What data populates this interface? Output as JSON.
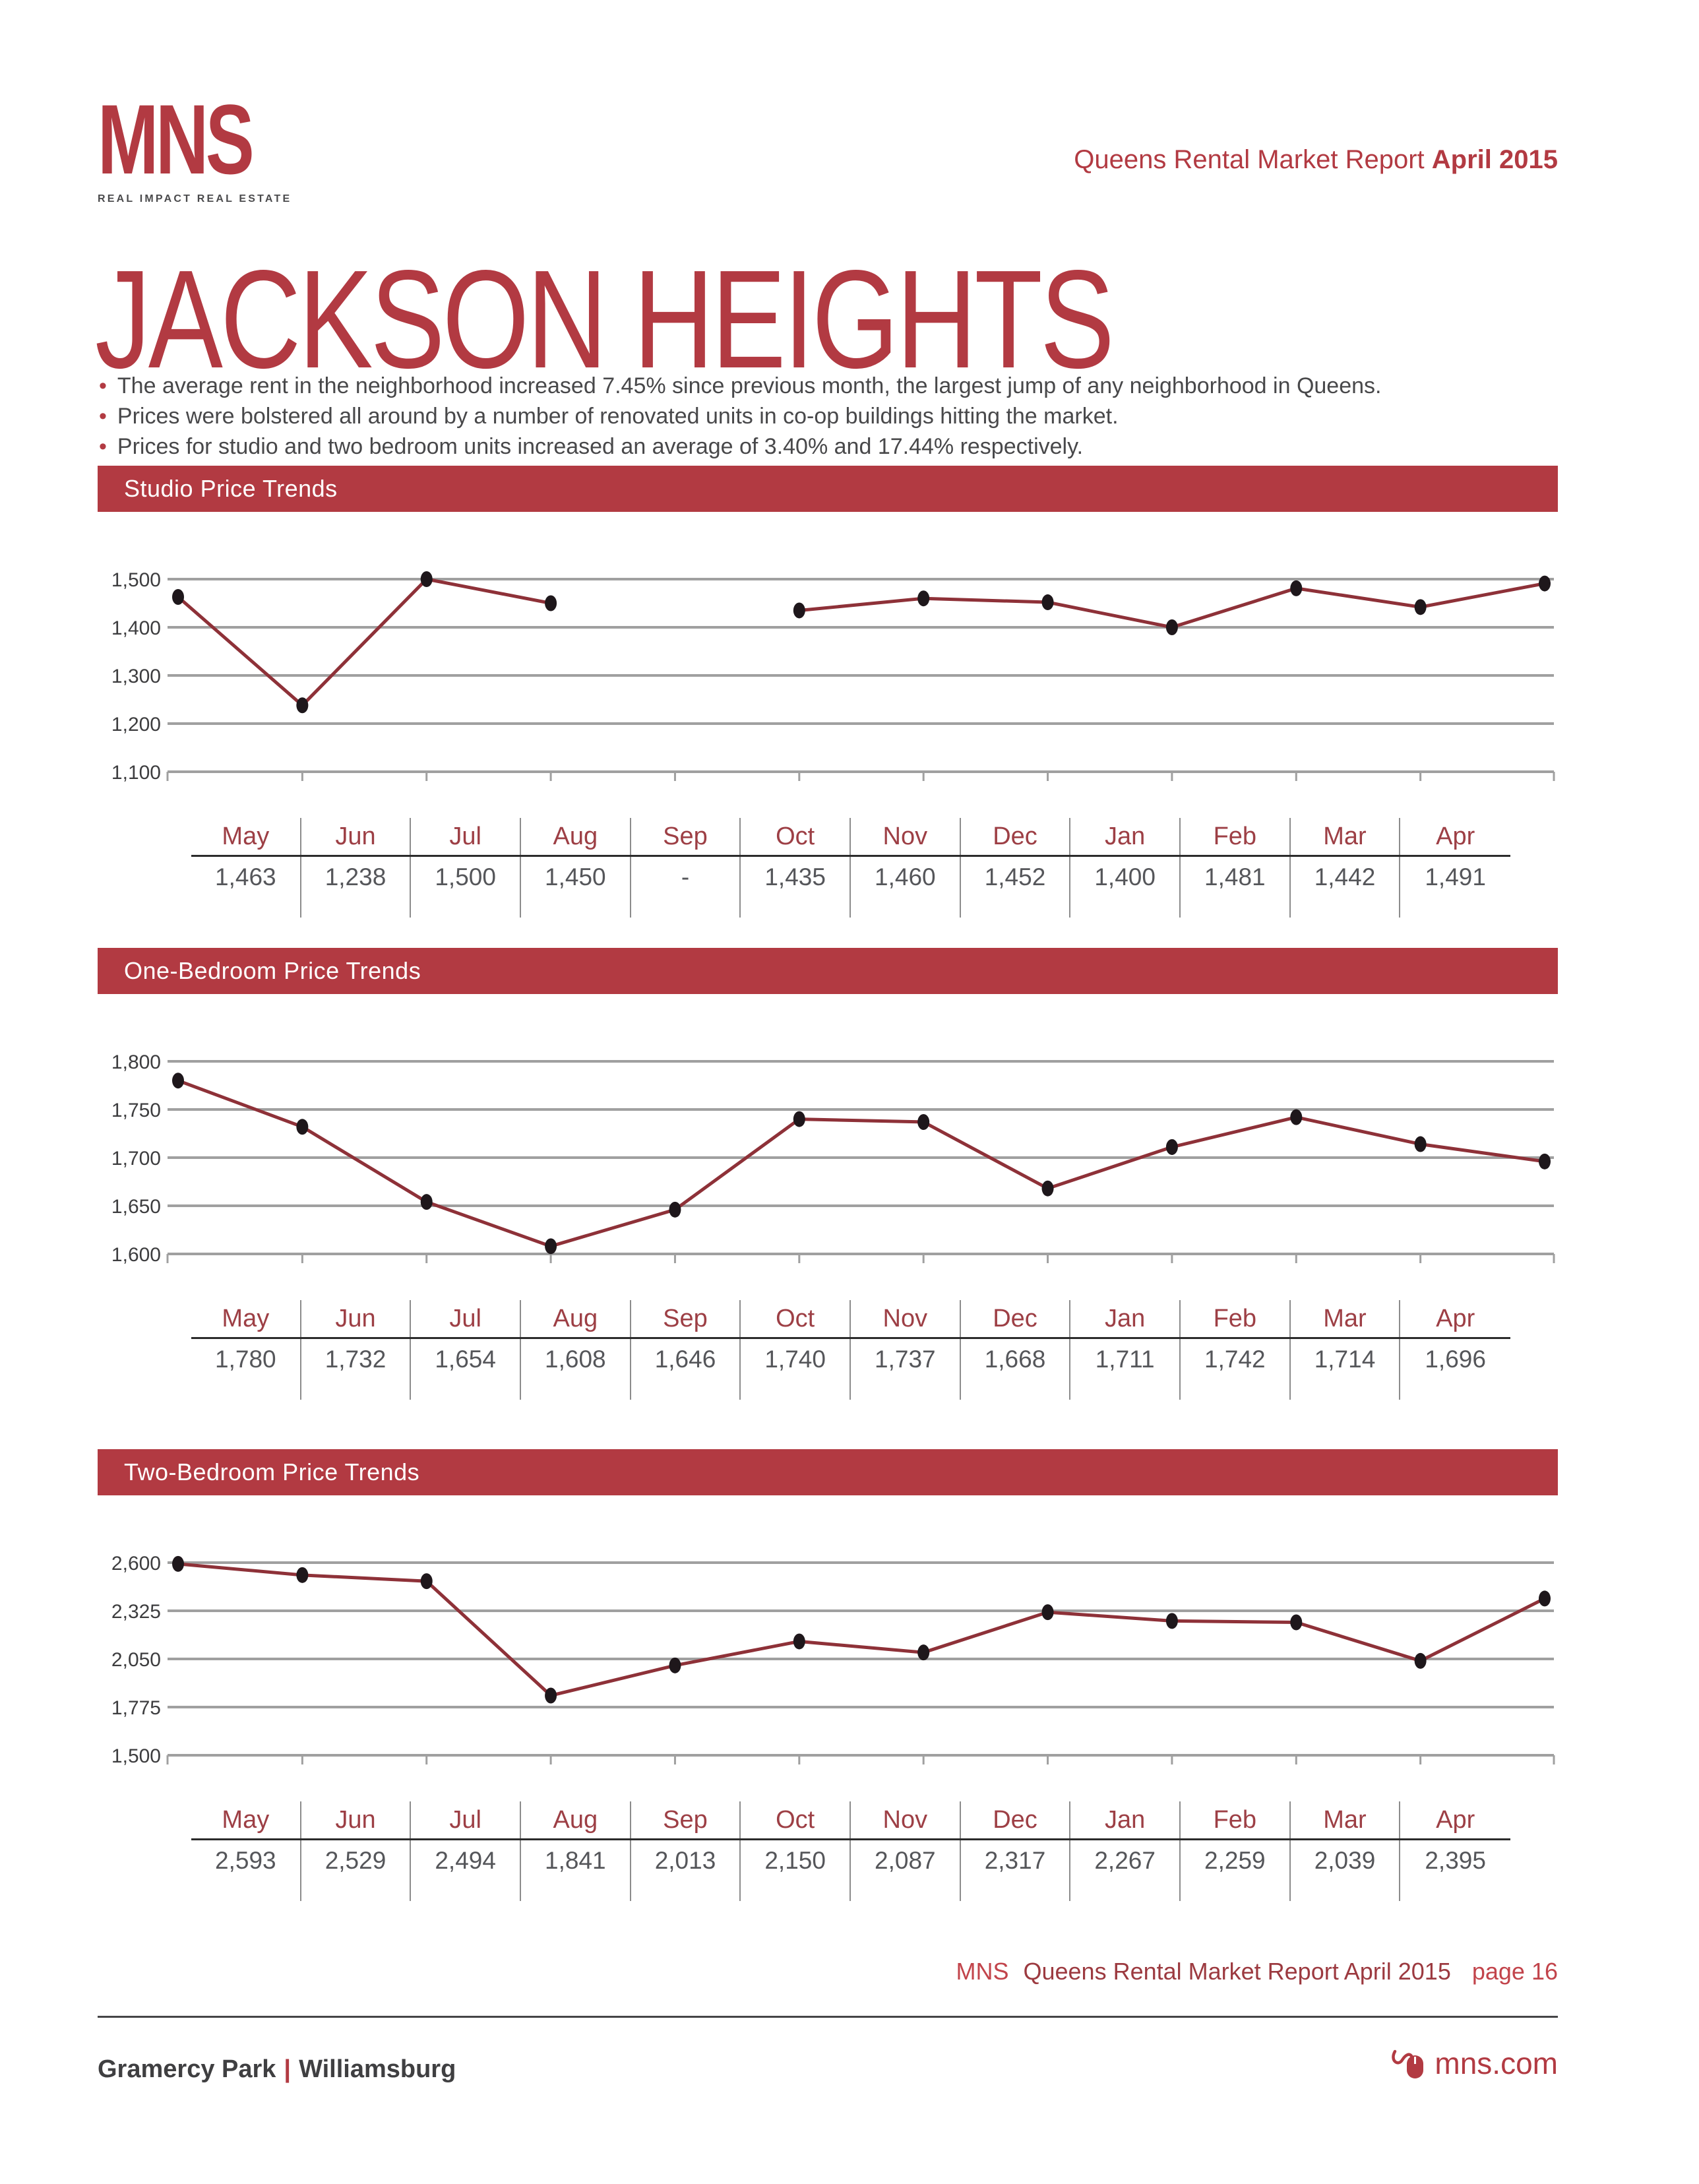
{
  "logo": {
    "name": "MNS",
    "tagline": "REAL IMPACT REAL ESTATE"
  },
  "header": {
    "report_title": "Queens Rental Market Report",
    "report_period": "April 2015"
  },
  "page_title": "JACKSON HEIGHTS",
  "bullets": [
    "The average rent in the neighborhood increased 7.45% since previous month, the largest jump of any neighborhood in Queens.",
    "Prices were bolstered all around by a number of renovated units in co-op buildings hitting the market.",
    "Prices for studio and two bedroom units increased an average of 3.40% and 17.44% respectively."
  ],
  "accent_color": "#B23A42",
  "chart_data": [
    {
      "type": "line",
      "title": "Studio Price Trends",
      "categories": [
        "May",
        "Jun",
        "Jul",
        "Aug",
        "Sep",
        "Oct",
        "Nov",
        "Dec",
        "Jan",
        "Feb",
        "Mar",
        "Apr"
      ],
      "values": [
        1463,
        1238,
        1500,
        1450,
        null,
        1435,
        1460,
        1452,
        1400,
        1481,
        1442,
        1491
      ],
      "value_labels": [
        "1,463",
        "1,238",
        "1,500",
        "1,450",
        "-",
        "1,435",
        "1,460",
        "1,452",
        "1,400",
        "1,481",
        "1,442",
        "1,491"
      ],
      "ylim": [
        1100,
        1500
      ],
      "yticks": [
        1100,
        1200,
        1300,
        1400,
        1500
      ],
      "ytick_labels": [
        "1,100",
        "1,200",
        "1,300",
        "1,400",
        "1,500"
      ],
      "grid": true,
      "legend": "none",
      "line_color": "#8E3138",
      "point_color": "#1E171B"
    },
    {
      "type": "line",
      "title": "One-Bedroom Price Trends",
      "categories": [
        "May",
        "Jun",
        "Jul",
        "Aug",
        "Sep",
        "Oct",
        "Nov",
        "Dec",
        "Jan",
        "Feb",
        "Mar",
        "Apr"
      ],
      "values": [
        1780,
        1732,
        1654,
        1608,
        1646,
        1740,
        1737,
        1668,
        1711,
        1742,
        1714,
        1696
      ],
      "value_labels": [
        "1,780",
        "1,732",
        "1,654",
        "1,608",
        "1,646",
        "1,740",
        "1,737",
        "1,668",
        "1,711",
        "1,742",
        "1,714",
        "1,696"
      ],
      "ylim": [
        1600,
        1800
      ],
      "yticks": [
        1600,
        1650,
        1700,
        1750,
        1800
      ],
      "ytick_labels": [
        "1,600",
        "1,650",
        "1,700",
        "1,750",
        "1,800"
      ],
      "grid": true,
      "legend": "none",
      "line_color": "#8E3138",
      "point_color": "#1E171B"
    },
    {
      "type": "line",
      "title": "Two-Bedroom Price Trends",
      "categories": [
        "May",
        "Jun",
        "Jul",
        "Aug",
        "Sep",
        "Oct",
        "Nov",
        "Dec",
        "Jan",
        "Feb",
        "Mar",
        "Apr"
      ],
      "values": [
        2593,
        2529,
        2494,
        1841,
        2013,
        2150,
        2087,
        2317,
        2267,
        2259,
        2039,
        2395
      ],
      "value_labels": [
        "2,593",
        "2,529",
        "2,494",
        "1,841",
        "2,013",
        "2,150",
        "2,087",
        "2,317",
        "2,267",
        "2,259",
        "2,039",
        "2,395"
      ],
      "ylim": [
        1500,
        2600
      ],
      "yticks": [
        1500,
        1775,
        2050,
        2325,
        2600
      ],
      "ytick_labels": [
        "1,500",
        "1,775",
        "2,050",
        "2,325",
        "2,600"
      ],
      "grid": true,
      "legend": "none",
      "line_color": "#8E3138",
      "point_color": "#1E171B"
    }
  ],
  "footer": {
    "report_brand": "MNS",
    "report_line": "Queens Rental Market Report April 2015",
    "page_label": "page 16",
    "neighborhood_left": "Gramercy Park",
    "neighborhood_separator": "|",
    "neighborhood_right": "Williamsburg",
    "website": "mns.com"
  }
}
